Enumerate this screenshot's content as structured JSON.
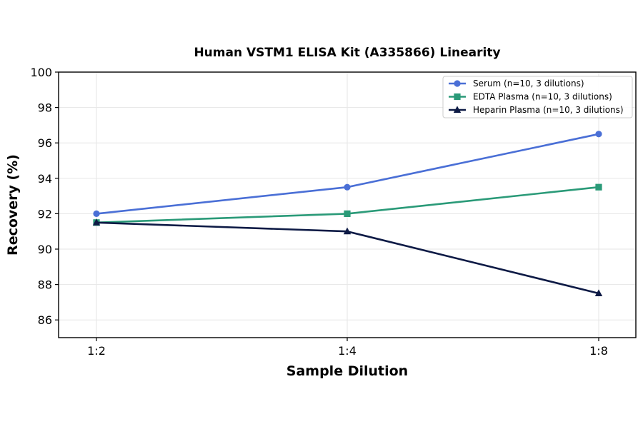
{
  "chart_data": {
    "type": "line",
    "title": "Human VSTM1 ELISA Kit (A335866) Linearity",
    "xlabel": "Sample Dilution",
    "ylabel": "Recovery (%)",
    "categories": [
      "1:2",
      "1:4",
      "1:8"
    ],
    "ylim": [
      85,
      100
    ],
    "yticks": [
      86,
      88,
      90,
      92,
      94,
      96,
      98,
      100
    ],
    "grid": true,
    "legend_position": "top-right",
    "series": [
      {
        "name": "Serum (n=10, 3 dilutions)",
        "values": [
          92.0,
          93.5,
          96.5
        ],
        "color": "#4a6fd6",
        "marker": "circle"
      },
      {
        "name": "EDTA Plasma (n=10, 3 dilutions)",
        "values": [
          91.5,
          92.0,
          93.5
        ],
        "color": "#2a9a78",
        "marker": "square"
      },
      {
        "name": "Heparin Plasma (n=10, 3 dilutions)",
        "values": [
          91.5,
          91.0,
          87.5
        ],
        "color": "#0d1a45",
        "marker": "triangle"
      }
    ]
  }
}
